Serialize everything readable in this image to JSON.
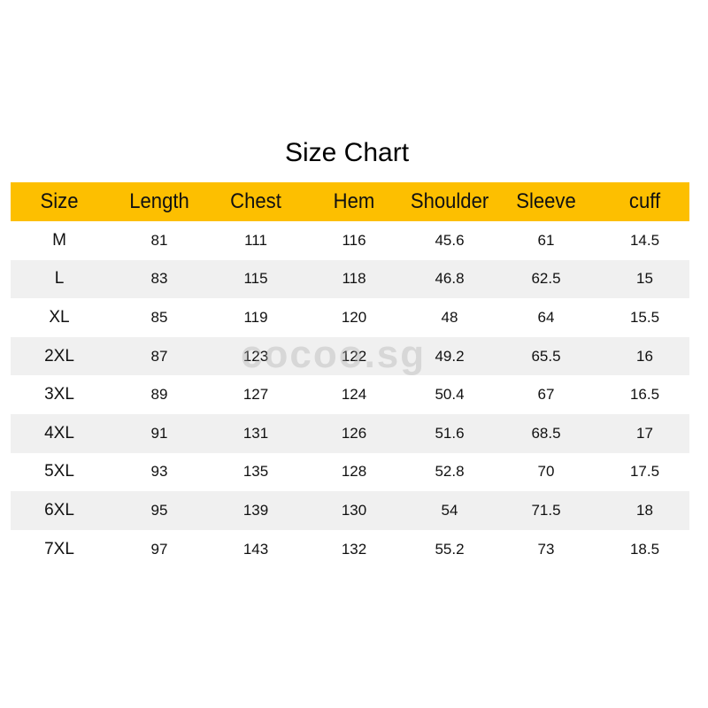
{
  "title": "Size Chart",
  "watermark": "cocoo.sg",
  "colors": {
    "header_bg": "#fdbf00",
    "alt_row_bg": "#f0f0f0"
  },
  "chart_data": {
    "type": "table",
    "title": "Size Chart",
    "columns": [
      "Size",
      "Length",
      "Chest",
      "Hem",
      "Shoulder",
      "Sleeve",
      "cuff"
    ],
    "rows": [
      [
        "M",
        "81",
        "111",
        "116",
        "45.6",
        "61",
        "14.5"
      ],
      [
        "L",
        "83",
        "115",
        "118",
        "46.8",
        "62.5",
        "15"
      ],
      [
        "XL",
        "85",
        "119",
        "120",
        "48",
        "64",
        "15.5"
      ],
      [
        "2XL",
        "87",
        "123",
        "122",
        "49.2",
        "65.5",
        "16"
      ],
      [
        "3XL",
        "89",
        "127",
        "124",
        "50.4",
        "67",
        "16.5"
      ],
      [
        "4XL",
        "91",
        "131",
        "126",
        "51.6",
        "68.5",
        "17"
      ],
      [
        "5XL",
        "93",
        "135",
        "128",
        "52.8",
        "70",
        "17.5"
      ],
      [
        "6XL",
        "95",
        "139",
        "130",
        "54",
        "71.5",
        "18"
      ],
      [
        "7XL",
        "97",
        "143",
        "132",
        "55.2",
        "73",
        "18.5"
      ]
    ]
  }
}
